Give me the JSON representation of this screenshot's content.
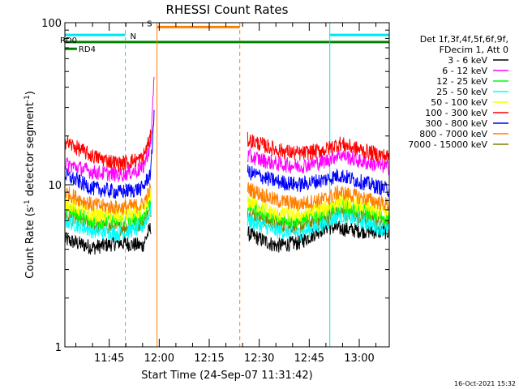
{
  "chart_data": {
    "type": "line",
    "title": "RHESSI Count Rates",
    "xlabel": "Start Time (24-Sep-07 11:31:42)",
    "ylabel_main": "Count Rate (s",
    "ylabel_sup1": "-1",
    "ylabel_mid": " detector segment",
    "ylabel_sup2": "-1",
    "ylabel_end": ")",
    "y_log": true,
    "ylim": [
      1,
      100
    ],
    "y_ticks": [
      {
        "v": 1,
        "label": "1"
      },
      {
        "v": 10,
        "label": "10"
      },
      {
        "v": 100,
        "label": "100"
      }
    ],
    "x_time_range": [
      "11:31:42",
      "13:09:00"
    ],
    "x_ticks": [
      "11:45",
      "12:00",
      "12:15",
      "12:30",
      "12:45",
      "13:00"
    ],
    "timestamp": "16-Oct-2021 15:32",
    "legend": {
      "header1": "Det 1f,3f,4f,5f,6f,9f,",
      "header2": "FDecim 1, Att 0",
      "entries": [
        {
          "label": "3 - 6 keV",
          "color": "#000000"
        },
        {
          "label": "6 - 12 keV",
          "color": "#ff00ff"
        },
        {
          "label": "12 - 25 keV",
          "color": "#00ff00"
        },
        {
          "label": "25 - 50 keV",
          "color": "#00ffff"
        },
        {
          "label": "50 - 100 keV",
          "color": "#ffff00"
        },
        {
          "label": "100 - 300 keV",
          "color": "#ff0000"
        },
        {
          "label": "300 - 800 keV",
          "color": "#0000ff"
        },
        {
          "label": "800 - 7000 keV",
          "color": "#ff8000"
        },
        {
          "label": "7000 - 15000 keV",
          "color": "#808000"
        }
      ]
    },
    "flags": [
      {
        "label": "N",
        "color": "#00e5ee",
        "intervals": [
          [
            "11:31:42",
            "11:49:50"
          ],
          [
            "12:51:10",
            "13:09:00"
          ]
        ],
        "level": 84
      },
      {
        "label": "S",
        "color": "#ff8000",
        "intervals": [
          [
            "11:59:20",
            "12:24:10"
          ]
        ],
        "level": 94
      },
      {
        "label": "RD0",
        "color": "#008000",
        "intervals": [
          [
            "11:31:42",
            "13:09:00"
          ]
        ],
        "level": 76
      },
      {
        "label": "RD4",
        "color": "#008000",
        "intervals": [
          [
            "11:31:42",
            "11:35:20"
          ]
        ],
        "level": 69
      }
    ],
    "markers": [
      {
        "time": "11:31:42",
        "style": "solid",
        "color": "#00e5ee"
      },
      {
        "time": "11:49:50",
        "style": "dashed",
        "color": "#00e5ee"
      },
      {
        "time": "11:59:20",
        "style": "solid",
        "color": "#ff8000"
      },
      {
        "time": "12:24:10",
        "style": "dashed",
        "color": "#ff8000"
      },
      {
        "time": "12:51:10",
        "style": "solid",
        "color": "#00e5ee"
      },
      {
        "time": "13:09:00",
        "style": "dashed",
        "color": "#00e5ee"
      }
    ],
    "data_gap": [
      "11:59:30",
      "12:26:30"
    ],
    "series": [
      {
        "name": "3 - 6 keV",
        "color": "#000000",
        "pre": [
          [
            "11:31:42",
            4.6
          ],
          [
            "11:40:00",
            4.1
          ],
          [
            "11:48:00",
            4.4
          ],
          [
            "11:55:00",
            4.2
          ],
          [
            "11:57:30",
            5.5
          ]
        ],
        "post": [
          [
            "12:26:30",
            5.0
          ],
          [
            "12:35:00",
            4.2
          ],
          [
            "12:42:00",
            4.4
          ],
          [
            "12:50:00",
            5.5
          ],
          [
            "13:00:00",
            5.2
          ],
          [
            "13:09:00",
            5.1
          ]
        ]
      },
      {
        "name": "6 - 12 keV",
        "color": "#ff00ff",
        "pre": [
          [
            "11:31:42",
            13.5
          ],
          [
            "11:40:00",
            12.0
          ],
          [
            "11:48:00",
            11.5
          ],
          [
            "11:55:00",
            12.5
          ],
          [
            "11:57:30",
            18.0
          ],
          [
            "11:58:30",
            50.0
          ]
        ],
        "post": [
          [
            "12:26:30",
            15.0
          ],
          [
            "12:35:00",
            13.5
          ],
          [
            "12:42:00",
            13.0
          ],
          [
            "12:50:00",
            14.0
          ],
          [
            "12:54:00",
            15.5
          ],
          [
            "13:00:00",
            14.0
          ],
          [
            "13:09:00",
            12.8
          ]
        ]
      },
      {
        "name": "12 - 25 keV",
        "color": "#00ff00",
        "pre": [
          [
            "11:31:42",
            7.2
          ],
          [
            "11:40:00",
            6.0
          ],
          [
            "11:48:00",
            6.0
          ],
          [
            "11:55:00",
            6.3
          ],
          [
            "11:57:30",
            8.0
          ]
        ],
        "post": [
          [
            "12:26:30",
            7.5
          ],
          [
            "12:35:00",
            6.2
          ],
          [
            "12:42:00",
            6.0
          ],
          [
            "12:50:00",
            6.8
          ],
          [
            "12:54:00",
            7.5
          ],
          [
            "13:00:00",
            7.0
          ],
          [
            "13:09:00",
            6.2
          ]
        ]
      },
      {
        "name": "25 - 50 keV",
        "color": "#00ffff",
        "pre": [
          [
            "11:31:42",
            6.0
          ],
          [
            "11:40:00",
            5.2
          ],
          [
            "11:48:00",
            5.0
          ],
          [
            "11:55:00",
            5.5
          ],
          [
            "11:57:30",
            7.0
          ]
        ],
        "post": [
          [
            "12:26:30",
            6.0
          ],
          [
            "12:35:00",
            5.2
          ],
          [
            "12:42:00",
            5.0
          ],
          [
            "12:50:00",
            5.8
          ],
          [
            "12:54:00",
            6.5
          ],
          [
            "13:00:00",
            6.0
          ],
          [
            "13:09:00",
            5.2
          ]
        ]
      },
      {
        "name": "50 - 100 keV",
        "color": "#ffff00",
        "pre": [
          [
            "11:31:42",
            7.8
          ],
          [
            "11:40:00",
            6.5
          ],
          [
            "11:48:00",
            6.4
          ],
          [
            "11:55:00",
            6.8
          ],
          [
            "11:57:30",
            8.5
          ]
        ],
        "post": [
          [
            "12:26:30",
            8.0
          ],
          [
            "12:35:00",
            6.6
          ],
          [
            "12:42:00",
            6.5
          ],
          [
            "12:50:00",
            7.2
          ],
          [
            "12:54:00",
            8.0
          ],
          [
            "13:00:00",
            7.5
          ],
          [
            "13:09:00",
            6.6
          ]
        ]
      },
      {
        "name": "100 - 300 keV",
        "color": "#ff0000",
        "pre": [
          [
            "11:31:42",
            18.5
          ],
          [
            "11:40:00",
            15.0
          ],
          [
            "11:48:00",
            13.5
          ],
          [
            "11:55:00",
            14.5
          ],
          [
            "11:57:30",
            20.0
          ]
        ],
        "post": [
          [
            "12:26:30",
            19.0
          ],
          [
            "12:35:00",
            16.5
          ],
          [
            "12:42:00",
            15.5
          ],
          [
            "12:50:00",
            16.5
          ],
          [
            "12:54:00",
            18.0
          ],
          [
            "13:00:00",
            16.5
          ],
          [
            "13:09:00",
            14.8
          ]
        ]
      },
      {
        "name": "300 - 800 keV",
        "color": "#0000ff",
        "pre": [
          [
            "11:31:42",
            11.5
          ],
          [
            "11:40:00",
            9.5
          ],
          [
            "11:48:00",
            9.0
          ],
          [
            "11:55:00",
            9.5
          ],
          [
            "11:57:30",
            12.0
          ],
          [
            "11:58:30",
            30.0
          ]
        ],
        "post": [
          [
            "12:26:30",
            12.0
          ],
          [
            "12:35:00",
            10.5
          ],
          [
            "12:42:00",
            10.0
          ],
          [
            "12:50:00",
            10.8
          ],
          [
            "12:54:00",
            11.5
          ],
          [
            "13:00:00",
            10.5
          ],
          [
            "13:09:00",
            9.3
          ]
        ]
      },
      {
        "name": "800 - 7000 keV",
        "color": "#ff8000",
        "pre": [
          [
            "11:31:42",
            9.0
          ],
          [
            "11:40:00",
            7.5
          ],
          [
            "11:48:00",
            7.2
          ],
          [
            "11:55:00",
            7.5
          ],
          [
            "11:57:30",
            9.5
          ]
        ],
        "post": [
          [
            "12:26:30",
            9.5
          ],
          [
            "12:35:00",
            8.0
          ],
          [
            "12:42:00",
            7.6
          ],
          [
            "12:50:00",
            8.2
          ],
          [
            "12:54:00",
            9.0
          ],
          [
            "13:00:00",
            8.4
          ],
          [
            "13:09:00",
            7.5
          ]
        ]
      },
      {
        "name": "7000 - 15000 keV",
        "color": "#808000",
        "pre": [
          [
            "11:31:42",
            6.5
          ],
          [
            "11:40:00",
            5.6
          ],
          [
            "11:48:00",
            5.4
          ],
          [
            "11:55:00",
            5.8
          ],
          [
            "11:57:30",
            7.0
          ]
        ],
        "post": [
          [
            "12:26:30",
            6.8
          ],
          [
            "12:35:00",
            5.7
          ],
          [
            "12:42:00",
            5.5
          ],
          [
            "12:50:00",
            6.2
          ],
          [
            "12:54:00",
            6.8
          ],
          [
            "13:00:00",
            6.4
          ],
          [
            "13:09:00",
            5.6
          ]
        ]
      }
    ]
  }
}
